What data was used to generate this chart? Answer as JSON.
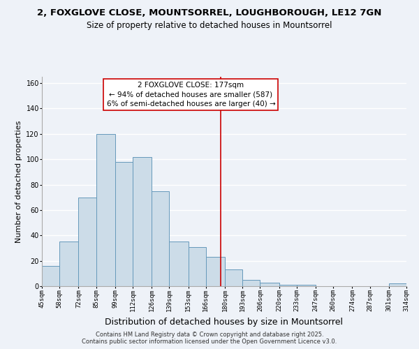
{
  "title": "2, FOXGLOVE CLOSE, MOUNTSORREL, LOUGHBOROUGH, LE12 7GN",
  "subtitle": "Size of property relative to detached houses in Mountsorrel",
  "xlabel": "Distribution of detached houses by size in Mountsorrel",
  "ylabel": "Number of detached properties",
  "bar_color": "#ccdce8",
  "bar_edge_color": "#6699bb",
  "background_color": "#eef2f8",
  "grid_color": "#ffffff",
  "bin_edges": [
    45,
    58,
    72,
    85,
    99,
    112,
    126,
    139,
    153,
    166,
    180,
    193,
    206,
    220,
    233,
    247,
    260,
    274,
    287,
    301,
    314
  ],
  "bin_labels": [
    "45sqm",
    "58sqm",
    "72sqm",
    "85sqm",
    "99sqm",
    "112sqm",
    "126sqm",
    "139sqm",
    "153sqm",
    "166sqm",
    "180sqm",
    "193sqm",
    "206sqm",
    "220sqm",
    "233sqm",
    "247sqm",
    "260sqm",
    "274sqm",
    "287sqm",
    "301sqm",
    "314sqm"
  ],
  "counts": [
    16,
    35,
    70,
    120,
    98,
    102,
    75,
    35,
    31,
    23,
    13,
    5,
    3,
    1,
    1,
    0,
    0,
    0,
    0,
    2
  ],
  "ylim": [
    0,
    165
  ],
  "property_line_x": 177,
  "annotation_title": "2 FOXGLOVE CLOSE: 177sqm",
  "annotation_line1": "← 94% of detached houses are smaller (587)",
  "annotation_line2": "6% of semi-detached houses are larger (40) →",
  "annotation_box_color": "#ffffff",
  "annotation_box_edge_color": "#cc0000",
  "vline_color": "#cc0000",
  "footer1": "Contains HM Land Registry data © Crown copyright and database right 2025.",
  "footer2": "Contains public sector information licensed under the Open Government Licence v3.0.",
  "title_fontsize": 9.5,
  "subtitle_fontsize": 8.5,
  "xlabel_fontsize": 9,
  "ylabel_fontsize": 8,
  "tick_fontsize": 6.5,
  "annotation_fontsize": 7.5,
  "footer_fontsize": 6
}
